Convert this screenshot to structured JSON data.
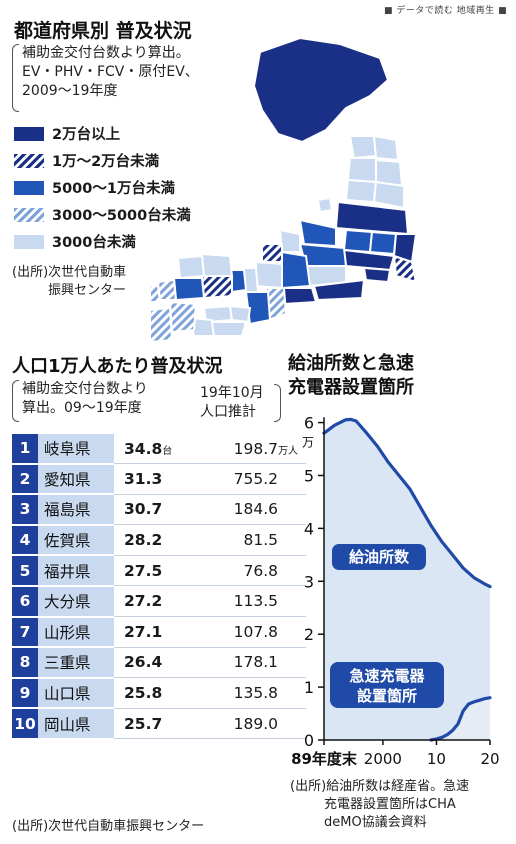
{
  "header": {
    "tag": "■ データで読む 地域再生 ■"
  },
  "map_section": {
    "title": "都道府県別 普及状況",
    "note_lines": [
      "補助金交付台数より算出。",
      "EV・PHV・FCV・原付EV、",
      "2009〜19年度"
    ],
    "legend": [
      {
        "label": "2万台以上",
        "style": "solid",
        "color": "#1a2f86"
      },
      {
        "label": "1万〜2万台未満",
        "style": "hatch",
        "color": "#1a2f86"
      },
      {
        "label": "5000〜1万台未満",
        "style": "solid",
        "color": "#1f56b8"
      },
      {
        "label": "3000〜5000台未満",
        "style": "hatch",
        "color": "#7ea3d9"
      },
      {
        "label": "3000台未満",
        "style": "solid",
        "color": "#c8d9f0"
      }
    ],
    "source_lines": [
      "(出所)次世代自動車",
      "振興センター"
    ]
  },
  "ranking_section": {
    "title": "人口1万人あたり普及状況",
    "note_lines": [
      "補助金交付台数より",
      "算出。09〜19年度"
    ],
    "pop_header_lines": [
      "19年10月",
      "人口推計"
    ],
    "value_unit": "台",
    "pop_unit": "万人",
    "source": "(出所)次世代自動車振興センター",
    "rows": [
      {
        "rank": "1",
        "pref": "岐阜県",
        "value": "34.8",
        "pop": "198.7"
      },
      {
        "rank": "2",
        "pref": "愛知県",
        "value": "31.3",
        "pop": "755.2"
      },
      {
        "rank": "3",
        "pref": "福島県",
        "value": "30.7",
        "pop": "184.6"
      },
      {
        "rank": "4",
        "pref": "佐賀県",
        "value": "28.2",
        "pop": "81.5"
      },
      {
        "rank": "5",
        "pref": "福井県",
        "value": "27.5",
        "pop": "76.8"
      },
      {
        "rank": "6",
        "pref": "大分県",
        "value": "27.2",
        "pop": "113.5"
      },
      {
        "rank": "7",
        "pref": "山形県",
        "value": "27.1",
        "pop": "107.8"
      },
      {
        "rank": "8",
        "pref": "三重県",
        "value": "26.4",
        "pop": "178.1"
      },
      {
        "rank": "9",
        "pref": "山口県",
        "value": "25.8",
        "pop": "135.8"
      },
      {
        "rank": "10",
        "pref": "岡山県",
        "value": "25.7",
        "pop": "189.0"
      }
    ]
  },
  "chart_section": {
    "title_lines": [
      "給油所数と急速",
      "充電器設置箇所"
    ],
    "source_lines": [
      "(出所)給油所数は経産省。急速",
      "充電器設置箇所はCHA",
      "deMO協議会資料"
    ]
  },
  "chart_data": {
    "type": "area",
    "title": "給油所数と急速充電器設置箇所",
    "ylabel_unit": "万",
    "ylim": [
      0,
      6.2
    ],
    "yticks": [
      0,
      1,
      2,
      3,
      4,
      5,
      6
    ],
    "xlim": [
      1989,
      2020
    ],
    "xtick_labels": [
      {
        "x": 1989,
        "label": "89年度末"
      },
      {
        "x": 2000,
        "label": "2000"
      },
      {
        "x": 2010,
        "label": "10"
      },
      {
        "x": 2020,
        "label": "20"
      }
    ],
    "series": [
      {
        "name": "給油所数",
        "color": "#1f4aa8",
        "fill": "#dbe6f5",
        "x": [
          1989,
          1991,
          1993,
          1994,
          1995,
          1997,
          1999,
          2001,
          2003,
          2005,
          2007,
          2009,
          2011,
          2013,
          2015,
          2017,
          2019,
          2020
        ],
        "y": [
          5.8,
          5.95,
          6.05,
          6.06,
          6.03,
          5.8,
          5.55,
          5.25,
          5.0,
          4.75,
          4.4,
          4.05,
          3.75,
          3.5,
          3.25,
          3.07,
          2.95,
          2.9
        ]
      },
      {
        "name": "急速充電器設置箇所",
        "color": "#1f4aa8",
        "fill": "#e6ecf6",
        "x": [
          2009,
          2010,
          2011,
          2012,
          2013,
          2014,
          2015,
          2016,
          2017,
          2018,
          2019,
          2020
        ],
        "y": [
          0.0,
          0.02,
          0.05,
          0.1,
          0.18,
          0.3,
          0.55,
          0.68,
          0.72,
          0.75,
          0.78,
          0.8
        ]
      }
    ],
    "labels": [
      "給油所数",
      "急速充電器",
      "設置箇所"
    ]
  }
}
